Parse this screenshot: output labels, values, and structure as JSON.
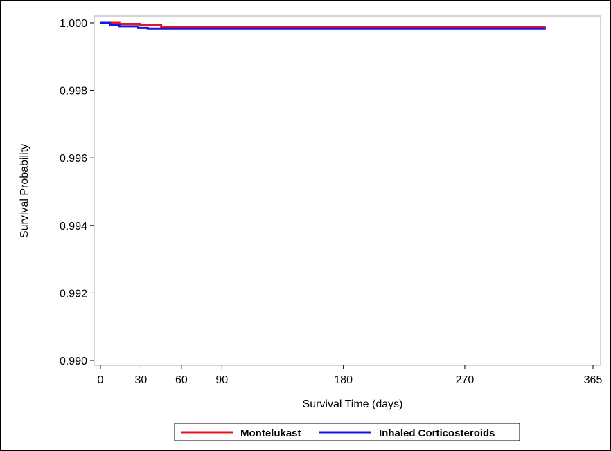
{
  "chart_data": {
    "type": "line",
    "step": true,
    "title": "",
    "xlabel": "Survival Time (days)",
    "ylabel": "Survival Probability",
    "xlim": [
      0,
      365
    ],
    "ylim": [
      0.99,
      1.0
    ],
    "xticks": [
      0,
      30,
      60,
      90,
      180,
      270,
      365
    ],
    "yticks": [
      0.99,
      0.992,
      0.994,
      0.996,
      0.998,
      1.0
    ],
    "ytick_labels": [
      "0.990",
      "0.992",
      "0.994",
      "0.996",
      "0.998",
      "1.000"
    ],
    "grid": false,
    "legend_position": "bottom",
    "series": [
      {
        "name": "Montelukast",
        "color": "#e8141b",
        "x": [
          0,
          14,
          29,
          45,
          330
        ],
        "y": [
          1.0,
          0.99997,
          0.99993,
          0.99988,
          0.99988
        ]
      },
      {
        "name": "Inhaled Corticosteroids",
        "color": "#1414e8",
        "x": [
          0,
          7,
          14,
          28,
          35,
          330
        ],
        "y": [
          1.0,
          0.99993,
          0.9999,
          0.99985,
          0.99983,
          0.99983
        ]
      }
    ]
  }
}
